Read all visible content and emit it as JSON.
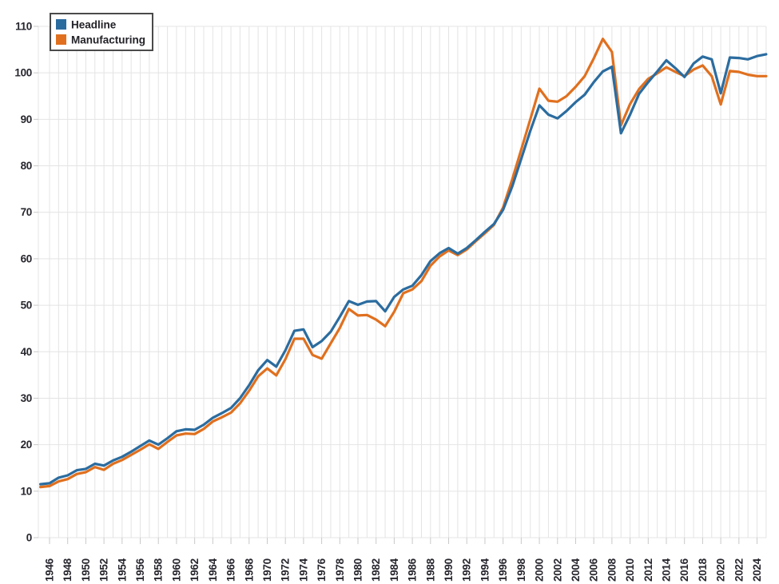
{
  "legend": {
    "items": [
      {
        "label": "Headline",
        "color": "#2b6c9f"
      },
      {
        "label": "Manufacturing",
        "color": "#e0701f"
      }
    ]
  },
  "chart_data": {
    "type": "line",
    "title": "",
    "xlabel": "",
    "ylabel": "",
    "ylim": [
      0,
      110
    ],
    "ytick_step": 10,
    "grid": true,
    "legend_position": "top-left",
    "x": [
      1945,
      1946,
      1947,
      1948,
      1949,
      1950,
      1951,
      1952,
      1953,
      1954,
      1955,
      1956,
      1957,
      1958,
      1959,
      1960,
      1961,
      1962,
      1963,
      1964,
      1965,
      1966,
      1967,
      1968,
      1969,
      1970,
      1971,
      1972,
      1973,
      1974,
      1975,
      1976,
      1977,
      1978,
      1979,
      1980,
      1981,
      1982,
      1983,
      1984,
      1985,
      1986,
      1987,
      1988,
      1989,
      1990,
      1991,
      1992,
      1993,
      1994,
      1995,
      1996,
      1997,
      1998,
      1999,
      2000,
      2001,
      2002,
      2003,
      2004,
      2005,
      2006,
      2007,
      2008,
      2009,
      2010,
      2011,
      2012,
      2013,
      2014,
      2015,
      2016,
      2017,
      2018,
      2019,
      2020,
      2021,
      2022,
      2023,
      2024,
      2025
    ],
    "xtick_labels": [
      "1946",
      "1948",
      "1950",
      "1952",
      "1954",
      "1956",
      "1958",
      "1960",
      "1962",
      "1964",
      "1966",
      "1968",
      "1970",
      "1972",
      "1974",
      "1976",
      "1978",
      "1980",
      "1982",
      "1984",
      "1986",
      "1988",
      "1990",
      "1992",
      "1994",
      "1996",
      "1998",
      "2000",
      "2002",
      "2004",
      "2006",
      "2008",
      "2010",
      "2012",
      "2014",
      "2016",
      "2018",
      "2020",
      "2022",
      "2024"
    ],
    "ytick_labels": [
      "0",
      "10",
      "20",
      "30",
      "40",
      "50",
      "60",
      "70",
      "80",
      "90",
      "100",
      "110"
    ],
    "series": [
      {
        "name": "Headline",
        "color": "#2b6c9f",
        "values": [
          11.5,
          11.7,
          12.9,
          13.4,
          14.5,
          14.8,
          15.9,
          15.5,
          16.6,
          17.4,
          18.5,
          19.7,
          20.9,
          20.0,
          21.4,
          22.9,
          23.3,
          23.2,
          24.3,
          25.8,
          26.8,
          27.9,
          30.0,
          32.8,
          36.0,
          38.2,
          36.8,
          40.3,
          44.5,
          44.8,
          41.0,
          42.3,
          44.3,
          47.5,
          50.9,
          50.1,
          50.8,
          50.9,
          48.7,
          51.8,
          53.4,
          54.2,
          56.5,
          59.5,
          61.2,
          62.3,
          61.1,
          62.3,
          64.0,
          65.8,
          67.5,
          70.5,
          75.5,
          81.5,
          87.5,
          93.0,
          91.0,
          90.2,
          91.8,
          93.7,
          95.3,
          98.0,
          100.3,
          101.3,
          87.0,
          91.0,
          95.5,
          98.0,
          100.3,
          102.7,
          101.0,
          99.1,
          102.0,
          103.5,
          102.9,
          95.6,
          103.3,
          103.2,
          102.9,
          103.6,
          104.0
        ]
      },
      {
        "name": "Manufacturing",
        "color": "#e0701f",
        "values": [
          10.9,
          11.1,
          12.1,
          12.6,
          13.7,
          14.1,
          15.2,
          14.6,
          15.9,
          16.7,
          17.8,
          18.9,
          20.1,
          19.1,
          20.6,
          22.0,
          22.4,
          22.3,
          23.4,
          25.0,
          25.9,
          26.9,
          28.9,
          31.6,
          34.7,
          36.4,
          34.9,
          38.4,
          42.8,
          42.8,
          39.3,
          38.5,
          41.8,
          45.1,
          49.2,
          47.8,
          47.9,
          46.9,
          45.5,
          48.6,
          52.6,
          53.4,
          55.2,
          58.5,
          60.5,
          61.8,
          60.8,
          62.0,
          63.8,
          65.5,
          67.3,
          71.0,
          77.0,
          83.5,
          90.0,
          96.6,
          94.0,
          93.8,
          95.0,
          97.0,
          99.3,
          103.1,
          107.3,
          104.5,
          88.7,
          93.3,
          96.5,
          98.7,
          99.9,
          101.2,
          100.2,
          99.3,
          100.7,
          101.6,
          99.3,
          93.2,
          100.4,
          100.2,
          99.6,
          99.3,
          99.3
        ]
      }
    ],
    "colors": {
      "grid": "#e4e4e4",
      "tick": "#c9c9c9",
      "label": "#26262e",
      "background": "#ffffff",
      "legend_border": "#4a4a4a"
    }
  }
}
